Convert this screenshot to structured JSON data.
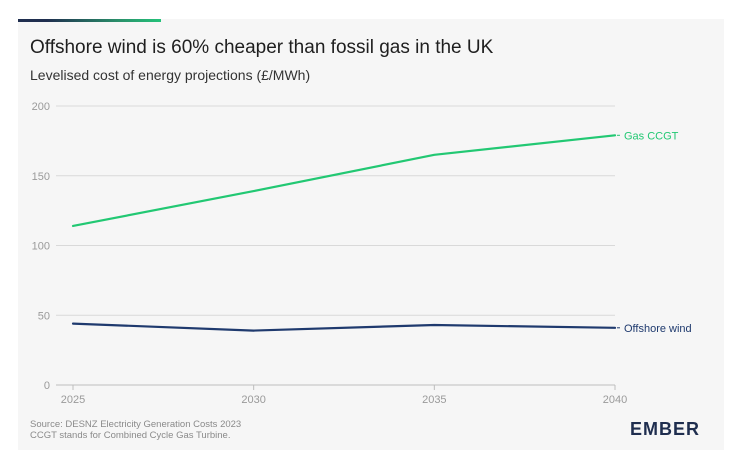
{
  "chart_data": {
    "type": "line",
    "title": "Offshore wind is 60% cheaper than fossil gas in the UK",
    "subtitle": "Levelised cost of energy projections (£/MWh)",
    "x": [
      2025,
      2030,
      2035,
      2040
    ],
    "xlim": [
      2025,
      2040
    ],
    "ylim": [
      0,
      200
    ],
    "yticks": [
      0,
      50,
      100,
      150,
      200
    ],
    "grid": true,
    "series": [
      {
        "name": "Gas CCGT",
        "values": [
          114,
          139,
          165,
          179
        ],
        "color": "#22c873"
      },
      {
        "name": "Offshore wind",
        "values": [
          44,
          39,
          43,
          41
        ],
        "color": "#1f3a6e"
      }
    ]
  },
  "footer": {
    "source_line1": "Source: DESNZ Electricity Generation Costs 2023",
    "source_line2": "CCGT stands for Combined Cycle Gas Turbine.",
    "logo": "EMBER"
  },
  "colors": {
    "accent_dark": "#1f2e4f",
    "accent_green": "#24c27a",
    "grid": "#d9d9d9",
    "tick_text": "#9a9a9a"
  }
}
